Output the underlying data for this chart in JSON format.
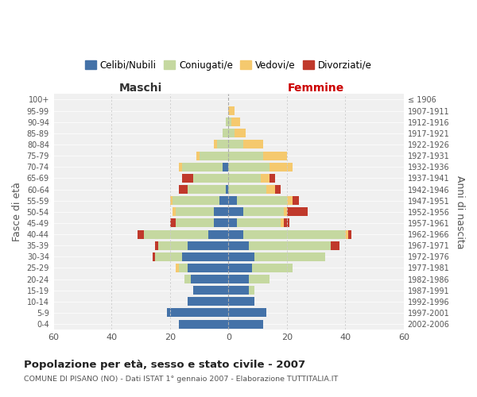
{
  "age_groups": [
    "100+",
    "95-99",
    "90-94",
    "85-89",
    "80-84",
    "75-79",
    "70-74",
    "65-69",
    "60-64",
    "55-59",
    "50-54",
    "45-49",
    "40-44",
    "35-39",
    "30-34",
    "25-29",
    "20-24",
    "15-19",
    "10-14",
    "5-9",
    "0-4"
  ],
  "birth_years": [
    "≤ 1906",
    "1907-1911",
    "1912-1916",
    "1917-1921",
    "1922-1926",
    "1927-1931",
    "1932-1936",
    "1937-1941",
    "1942-1946",
    "1947-1951",
    "1952-1956",
    "1957-1961",
    "1962-1966",
    "1967-1971",
    "1972-1976",
    "1977-1981",
    "1982-1986",
    "1987-1991",
    "1992-1996",
    "1997-2001",
    "2002-2006"
  ],
  "maschi": {
    "celibi": [
      0,
      0,
      0,
      0,
      0,
      0,
      2,
      0,
      1,
      3,
      5,
      5,
      7,
      14,
      16,
      14,
      13,
      12,
      14,
      21,
      17
    ],
    "coniugati": [
      0,
      0,
      1,
      2,
      4,
      10,
      14,
      12,
      13,
      16,
      13,
      13,
      22,
      10,
      9,
      3,
      2,
      0,
      0,
      0,
      0
    ],
    "vedovi": [
      0,
      0,
      0,
      0,
      1,
      1,
      1,
      0,
      0,
      1,
      1,
      0,
      0,
      0,
      0,
      1,
      0,
      0,
      0,
      0,
      0
    ],
    "divorziati": [
      0,
      0,
      0,
      0,
      0,
      0,
      0,
      4,
      3,
      0,
      0,
      2,
      2,
      1,
      1,
      0,
      0,
      0,
      0,
      0,
      0
    ]
  },
  "femmine": {
    "nubili": [
      0,
      0,
      0,
      0,
      0,
      0,
      0,
      0,
      0,
      3,
      5,
      3,
      5,
      7,
      9,
      8,
      7,
      7,
      9,
      13,
      12
    ],
    "coniugate": [
      0,
      0,
      1,
      2,
      5,
      12,
      14,
      11,
      13,
      17,
      14,
      15,
      35,
      28,
      24,
      14,
      7,
      2,
      0,
      0,
      0
    ],
    "vedove": [
      0,
      2,
      3,
      4,
      7,
      8,
      8,
      3,
      3,
      2,
      1,
      1,
      1,
      0,
      0,
      0,
      0,
      0,
      0,
      0,
      0
    ],
    "divorziate": [
      0,
      0,
      0,
      0,
      0,
      0,
      0,
      2,
      2,
      2,
      7,
      2,
      1,
      3,
      0,
      0,
      0,
      0,
      0,
      0,
      0
    ]
  },
  "colors": {
    "celibi": "#4472a8",
    "coniugati": "#c5d8a0",
    "vedovi": "#f5c96e",
    "divorziati": "#c0392b"
  },
  "xlim": 60,
  "title": "Popolazione per età, sesso e stato civile - 2007",
  "subtitle": "COMUNE DI PISANO (NO) - Dati ISTAT 1° gennaio 2007 - Elaborazione TUTTITALIA.IT",
  "ylabel_left": "Fasce di età",
  "ylabel_right": "Anni di nascita",
  "legend_labels": [
    "Celibi/Nubili",
    "Coniugati/e",
    "Vedovi/e",
    "Divorziati/e"
  ],
  "maschi_label": "Maschi",
  "femmine_label": "Femmine",
  "bg_color": "#ffffff",
  "plot_bg_color": "#f0f0f0"
}
